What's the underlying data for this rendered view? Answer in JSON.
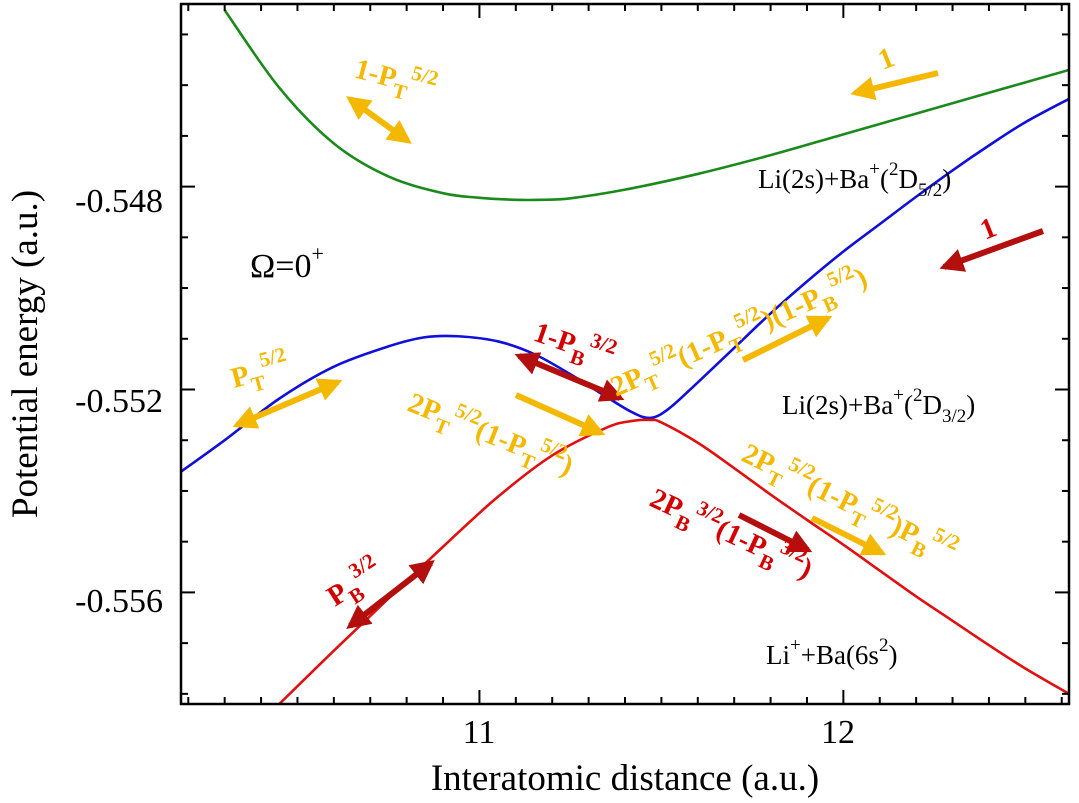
{
  "chart_data": {
    "type": "line",
    "title": "",
    "xlabel": "Interatomic distance (a.u.)",
    "ylabel": "Potential energy (a.u.)",
    "xlim": [
      10.18,
      12.62
    ],
    "ylim": [
      -0.5582,
      -0.5444
    ],
    "xticks": [
      11,
      12
    ],
    "xtick_labels": [
      "11",
      "12"
    ],
    "yticks": [
      -0.548,
      -0.552,
      -0.556
    ],
    "ytick_labels": [
      "-0.548",
      "-0.552",
      "-0.556"
    ],
    "symmetry_label": {
      "main": "Ω=0",
      "sup": "+"
    },
    "colors": {
      "green": "#1a8a1a",
      "blue": "#1010d8",
      "red": "#e01010",
      "yellow": "#f5b800",
      "darkred": "#b30f0f"
    },
    "series": [
      {
        "name": "Li(2s)+Ba+(2D5/2)",
        "color": "#1a8a1a",
        "x": [
          10.3,
          10.45,
          10.6,
          10.75,
          10.9,
          11.0,
          11.1,
          11.17,
          11.25,
          11.4,
          11.6,
          11.8,
          12.0,
          12.2,
          12.4,
          12.62
        ],
        "y": [
          -0.54452,
          -0.54605,
          -0.54715,
          -0.5478,
          -0.54813,
          -0.54822,
          -0.54826,
          -0.54826,
          -0.54823,
          -0.54806,
          -0.54775,
          -0.54738,
          -0.54697,
          -0.54656,
          -0.54615,
          -0.5457
        ]
      },
      {
        "name": "Li(2s)+Ba+(2D3/2)",
        "color": "#1010d8",
        "x": [
          10.18,
          10.3,
          10.45,
          10.6,
          10.75,
          10.85,
          10.94,
          11.05,
          11.15,
          11.25,
          11.35,
          11.42,
          11.47,
          11.52,
          11.6,
          11.7,
          11.8,
          11.9,
          12.0,
          12.1,
          12.2,
          12.3,
          12.4,
          12.5,
          12.62
        ],
        "y": [
          -0.55362,
          -0.553,
          -0.55218,
          -0.55155,
          -0.55115,
          -0.55097,
          -0.55095,
          -0.55105,
          -0.5513,
          -0.5517,
          -0.55215,
          -0.55245,
          -0.55256,
          -0.55238,
          -0.55186,
          -0.55118,
          -0.5505,
          -0.54987,
          -0.54928,
          -0.54874,
          -0.5482,
          -0.54768,
          -0.54719,
          -0.54673,
          -0.54627
        ]
      },
      {
        "name": "Li++Ba(6s2)",
        "color": "#e01010",
        "x": [
          10.45,
          10.6,
          10.75,
          10.9,
          11.05,
          11.2,
          11.35,
          11.42,
          11.47,
          11.5,
          11.6,
          11.7,
          11.8,
          11.9,
          12.0,
          12.1,
          12.2,
          12.3,
          12.4,
          12.5,
          12.62
        ],
        "y": [
          -0.5582,
          -0.55715,
          -0.55612,
          -0.5551,
          -0.55412,
          -0.5533,
          -0.55275,
          -0.55262,
          -0.5526,
          -0.55265,
          -0.55305,
          -0.55355,
          -0.55407,
          -0.55457,
          -0.55506,
          -0.55557,
          -0.55608,
          -0.55656,
          -0.55704,
          -0.5575,
          -0.558
        ]
      }
    ],
    "state_labels": [
      {
        "text": "Li(2s)+Ba",
        "sup1": "+",
        "mid": "(",
        "sup2": "2",
        "rest": "D",
        "sub": "5/2",
        "end": ")"
      },
      {
        "text": "Li(2s)+Ba",
        "sup1": "+",
        "mid": "(",
        "sup2": "2",
        "rest": "D",
        "sub": "3/2",
        "end": ")"
      },
      {
        "text": "Li",
        "sup1": "+",
        "mid": "+Ba(6s",
        "sup2": "2",
        "end": ")"
      }
    ],
    "annotations": {
      "g_one": "1",
      "r_one": "1",
      "one_minus_PT": {
        "a": "1-P",
        "b": "T",
        "c": "5/2"
      },
      "PT": {
        "a": "P",
        "b": "T",
        "c": "5/2"
      },
      "one_minus_PB": {
        "a": "1-P",
        "b": "B",
        "c": "3/2"
      },
      "long_upper": {
        "a": "2P",
        "b": "T",
        "c": "5/2",
        "d": "(1-P",
        "e": "T",
        "f": "5/2",
        "g": ")(1-P",
        "h": "B",
        "i": "5/2",
        "j": ")"
      },
      "mid_yellow": {
        "a": "2P",
        "b": "T",
        "c": "5/2",
        "d": "(1-P",
        "e": "T",
        "f": "5/2",
        "g": ")"
      },
      "lower_right": {
        "a": "2P",
        "b": "T",
        "c": "5/2",
        "d": "(1-P",
        "e": "T",
        "f": "5/2",
        "g": ")P",
        "h": "B",
        "i": "5/2"
      },
      "red_mid": {
        "a": "2P",
        "b": "B",
        "c": "3/2",
        "d": "(1-P",
        "e": "B",
        "f": "3/2",
        "g": ")"
      },
      "PB": {
        "a": "P",
        "b": "B",
        "c": "3/2"
      }
    }
  }
}
